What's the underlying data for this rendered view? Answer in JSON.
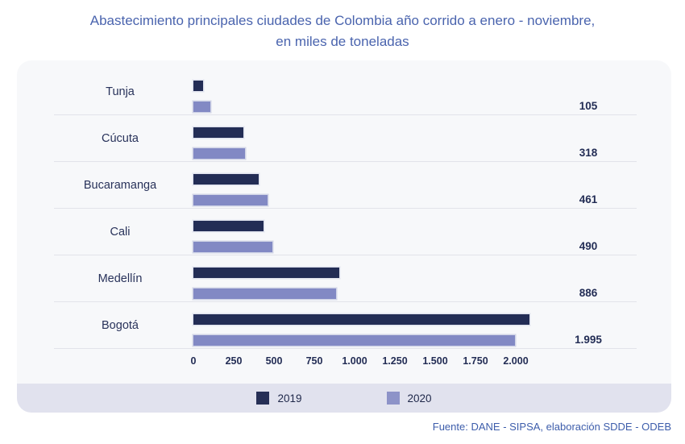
{
  "title": {
    "line1": "Abastecimiento principales ciudades de Colombia año corrido a enero - noviembre,",
    "line2": "en miles de toneladas"
  },
  "chart_data": {
    "type": "bar",
    "orientation": "horizontal",
    "title": "Abastecimiento principales ciudades de Colombia año corrido a enero - noviembre, en miles de toneladas",
    "categories": [
      "Tunja",
      "Cúcuta",
      "Bucaramanga",
      "Cali",
      "Medellín",
      "Bogotá"
    ],
    "series": [
      {
        "name": "2019",
        "color": "#232d55",
        "values": [
          60,
          310,
          405,
          435,
          905,
          2085
        ]
      },
      {
        "name": "2020",
        "color": "#8289c4",
        "values": [
          105,
          318,
          461,
          490,
          886,
          1995
        ]
      }
    ],
    "value_labels": [
      "105",
      "318",
      "461",
      "490",
      "886",
      "1.995"
    ],
    "value_labels_for_series": "2020",
    "x_tick_values": [
      0,
      250,
      500,
      750,
      1000,
      1250,
      1500,
      1750,
      2000
    ],
    "x_tick_labels": [
      "0",
      "250",
      "500",
      "750",
      "1.000",
      "1.250",
      "1.500",
      "1.750",
      "2.000"
    ],
    "xlim": [
      0,
      2000
    ],
    "grid": "row-separators-only",
    "legend_position": "bottom",
    "legend": [
      {
        "label": "2019",
        "color": "#262f56"
      },
      {
        "label": "2020",
        "color": "#8d93c8"
      }
    ]
  },
  "footer": {
    "source": "Fuente: DANE - SIPSA, elaboración SDDE - ODEB"
  },
  "colors": {
    "title_text": "#4a64ae",
    "bar_2019": "#232d55",
    "bar_2020": "#8289c4",
    "card_background": "#f7f8fa",
    "legend_band_background": "#e1e2ee",
    "axis_text": "#232d55",
    "source_text": "#3d5dab"
  }
}
